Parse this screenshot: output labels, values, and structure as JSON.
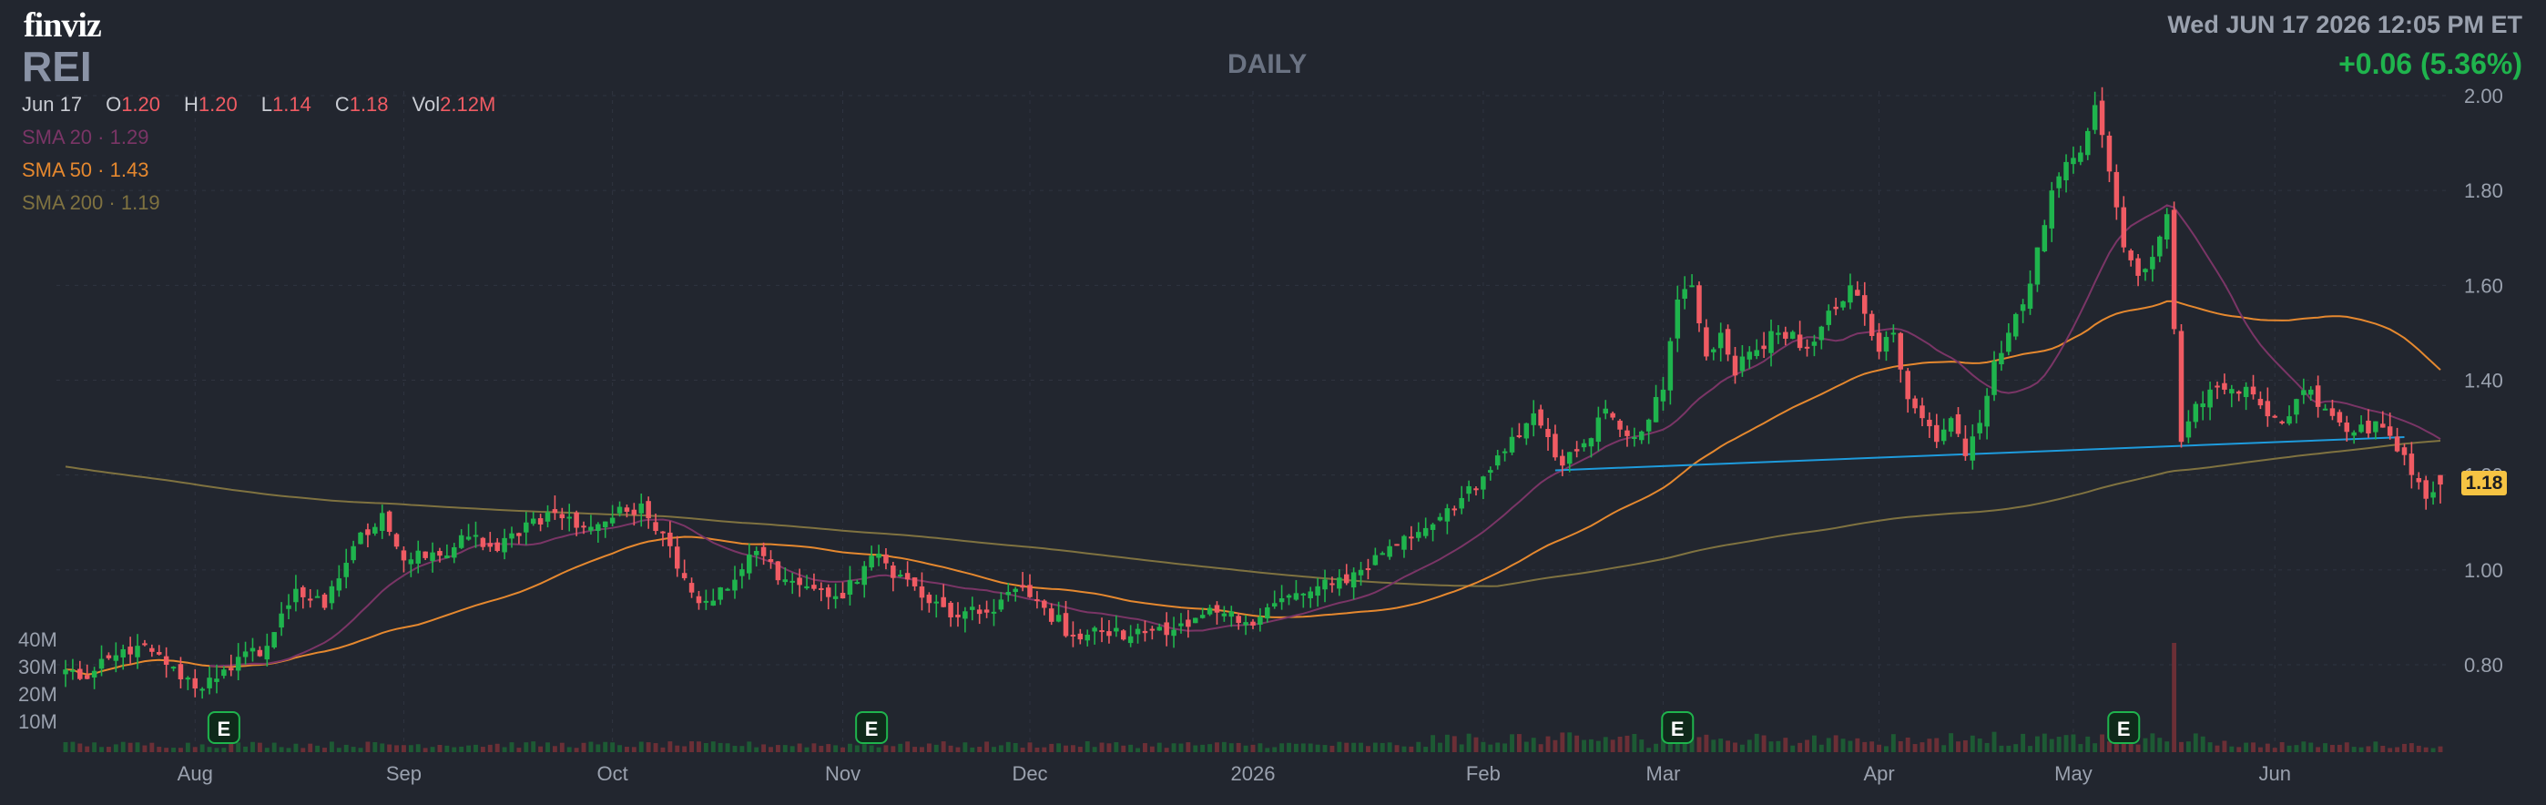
{
  "header": {
    "logo": "finviz",
    "ticker": "REI",
    "timeframe": "DAILY",
    "datetime": "Wed JUN 17 2026 12:05 PM ET",
    "change": "+0.06 (5.36%)"
  },
  "ohlc": {
    "date": "Jun 17",
    "open_label": "O",
    "open": "1.20",
    "high_label": "H",
    "high": "1.20",
    "low_label": "L",
    "low": "1.14",
    "close_label": "C",
    "close": "1.18",
    "vol_label": "Vol",
    "vol": "2.12M"
  },
  "sma": {
    "sma20": {
      "label": "SMA 20",
      "value": "1.29"
    },
    "sma50": {
      "label": "SMA 50",
      "value": "1.43"
    },
    "sma200": {
      "label": "SMA 200",
      "value": "1.19"
    }
  },
  "last_price_tag": "1.18",
  "colors": {
    "background": "#22262f",
    "up": "#1fb44d",
    "down": "#f05b63",
    "sma20": "#7a3566",
    "sma50": "#e5882f",
    "sma200": "#7f7240",
    "trendline": "#1e9bdc",
    "grid": "#2f3440",
    "earnings": "#1fb44d"
  },
  "chart_data": {
    "type": "candlestick",
    "price_axis": {
      "ticks": [
        "2.00",
        "1.80",
        "1.60",
        "1.40",
        "1.20",
        "1.00",
        "0.80"
      ],
      "values": [
        2.0,
        1.8,
        1.6,
        1.4,
        1.2,
        1.0,
        0.8
      ],
      "ylim": [
        0.66,
        2.02
      ]
    },
    "volume_axis": {
      "ticks": [
        "40M",
        "30M",
        "20M",
        "10M"
      ],
      "values": [
        40,
        30,
        20,
        10
      ]
    },
    "x_axis": {
      "labels": [
        "Aug",
        "Sep",
        "Oct",
        "Nov",
        "Dec",
        "2026",
        "Feb",
        "Mar",
        "Apr",
        "May",
        "Jun"
      ],
      "label_bar_index": [
        18,
        47,
        76,
        108,
        134,
        165,
        197,
        222,
        252,
        279,
        307
      ]
    },
    "earnings_markers": {
      "label": "E",
      "bar_index": [
        22,
        112,
        224,
        286
      ]
    },
    "trendline": {
      "from": {
        "bar": 207,
        "price": 1.21
      },
      "to": {
        "bar": 325,
        "price": 1.28
      }
    },
    "close_anchors": [
      [
        0,
        0.79
      ],
      [
        3,
        0.77
      ],
      [
        7,
        0.82
      ],
      [
        10,
        0.84
      ],
      [
        14,
        0.8
      ],
      [
        18,
        0.75
      ],
      [
        22,
        0.79
      ],
      [
        28,
        0.84
      ],
      [
        32,
        0.96
      ],
      [
        36,
        0.92
      ],
      [
        40,
        1.05
      ],
      [
        44,
        1.12
      ],
      [
        47,
        1.02
      ],
      [
        52,
        1.03
      ],
      [
        56,
        1.07
      ],
      [
        60,
        1.04
      ],
      [
        64,
        1.1
      ],
      [
        68,
        1.12
      ],
      [
        72,
        1.09
      ],
      [
        76,
        1.11
      ],
      [
        80,
        1.14
      ],
      [
        84,
        1.05
      ],
      [
        88,
        0.93
      ],
      [
        92,
        0.96
      ],
      [
        96,
        1.04
      ],
      [
        100,
        0.98
      ],
      [
        104,
        0.96
      ],
      [
        108,
        0.94
      ],
      [
        112,
        1.03
      ],
      [
        116,
        0.99
      ],
      [
        120,
        0.93
      ],
      [
        124,
        0.9
      ],
      [
        128,
        0.91
      ],
      [
        132,
        0.96
      ],
      [
        136,
        0.92
      ],
      [
        140,
        0.86
      ],
      [
        144,
        0.87
      ],
      [
        148,
        0.86
      ],
      [
        152,
        0.88
      ],
      [
        156,
        0.88
      ],
      [
        160,
        0.91
      ],
      [
        164,
        0.89
      ],
      [
        168,
        0.93
      ],
      [
        172,
        0.95
      ],
      [
        176,
        0.97
      ],
      [
        180,
        1.0
      ],
      [
        184,
        1.05
      ],
      [
        188,
        1.08
      ],
      [
        192,
        1.13
      ],
      [
        196,
        1.17
      ],
      [
        200,
        1.25
      ],
      [
        204,
        1.33
      ],
      [
        206,
        1.28
      ],
      [
        208,
        1.22
      ],
      [
        210,
        1.25
      ],
      [
        214,
        1.34
      ],
      [
        218,
        1.28
      ],
      [
        222,
        1.38
      ],
      [
        224,
        1.57
      ],
      [
        226,
        1.6
      ],
      [
        228,
        1.45
      ],
      [
        230,
        1.5
      ],
      [
        232,
        1.41
      ],
      [
        234,
        1.46
      ],
      [
        238,
        1.5
      ],
      [
        242,
        1.47
      ],
      [
        246,
        1.55
      ],
      [
        248,
        1.6
      ],
      [
        250,
        1.54
      ],
      [
        252,
        1.46
      ],
      [
        254,
        1.5
      ],
      [
        256,
        1.36
      ],
      [
        258,
        1.32
      ],
      [
        260,
        1.27
      ],
      [
        262,
        1.32
      ],
      [
        264,
        1.24
      ],
      [
        266,
        1.31
      ],
      [
        268,
        1.44
      ],
      [
        270,
        1.5
      ],
      [
        272,
        1.56
      ],
      [
        274,
        1.68
      ],
      [
        276,
        1.8
      ],
      [
        278,
        1.86
      ],
      [
        280,
        1.88
      ],
      [
        282,
        1.98
      ],
      [
        284,
        1.84
      ],
      [
        286,
        1.68
      ],
      [
        288,
        1.62
      ],
      [
        290,
        1.66
      ],
      [
        292,
        1.75
      ],
      [
        294,
        1.27
      ],
      [
        296,
        1.35
      ],
      [
        300,
        1.38
      ],
      [
        304,
        1.37
      ],
      [
        308,
        1.31
      ],
      [
        312,
        1.38
      ],
      [
        314,
        1.34
      ],
      [
        318,
        1.29
      ],
      [
        322,
        1.3
      ],
      [
        324,
        1.25
      ],
      [
        326,
        1.2
      ],
      [
        328,
        1.15
      ],
      [
        330,
        1.18
      ]
    ],
    "volume_spike": {
      "bar_index": 293,
      "volume_m": 40
    },
    "ohlc_last": {
      "open": 1.2,
      "high": 1.2,
      "low": 1.14,
      "close": 1.18,
      "volume_m": 2.12
    }
  }
}
